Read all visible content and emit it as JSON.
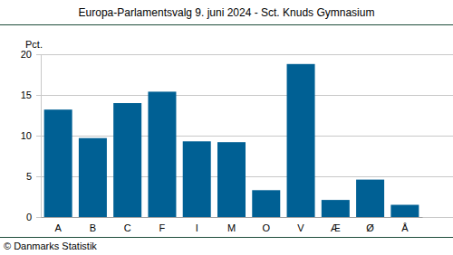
{
  "chart_data": {
    "type": "bar",
    "title": "Europa-Parlamentsvalg 9. juni 2024 - Sct. Knuds Gymnasium",
    "ylabel": "Pct.",
    "annotations": [
      "© Danmarks Statistik"
    ],
    "categories": [
      "A",
      "B",
      "C",
      "F",
      "I",
      "M",
      "O",
      "V",
      "Æ",
      "Ø",
      "Å"
    ],
    "values": [
      13.2,
      9.7,
      14.0,
      15.4,
      9.3,
      9.2,
      3.3,
      18.8,
      2.1,
      4.6,
      1.5
    ],
    "color": "#006094",
    "ylim": [
      0,
      20
    ],
    "yticks": [
      0,
      5,
      10,
      15,
      20
    ],
    "grid": true
  }
}
